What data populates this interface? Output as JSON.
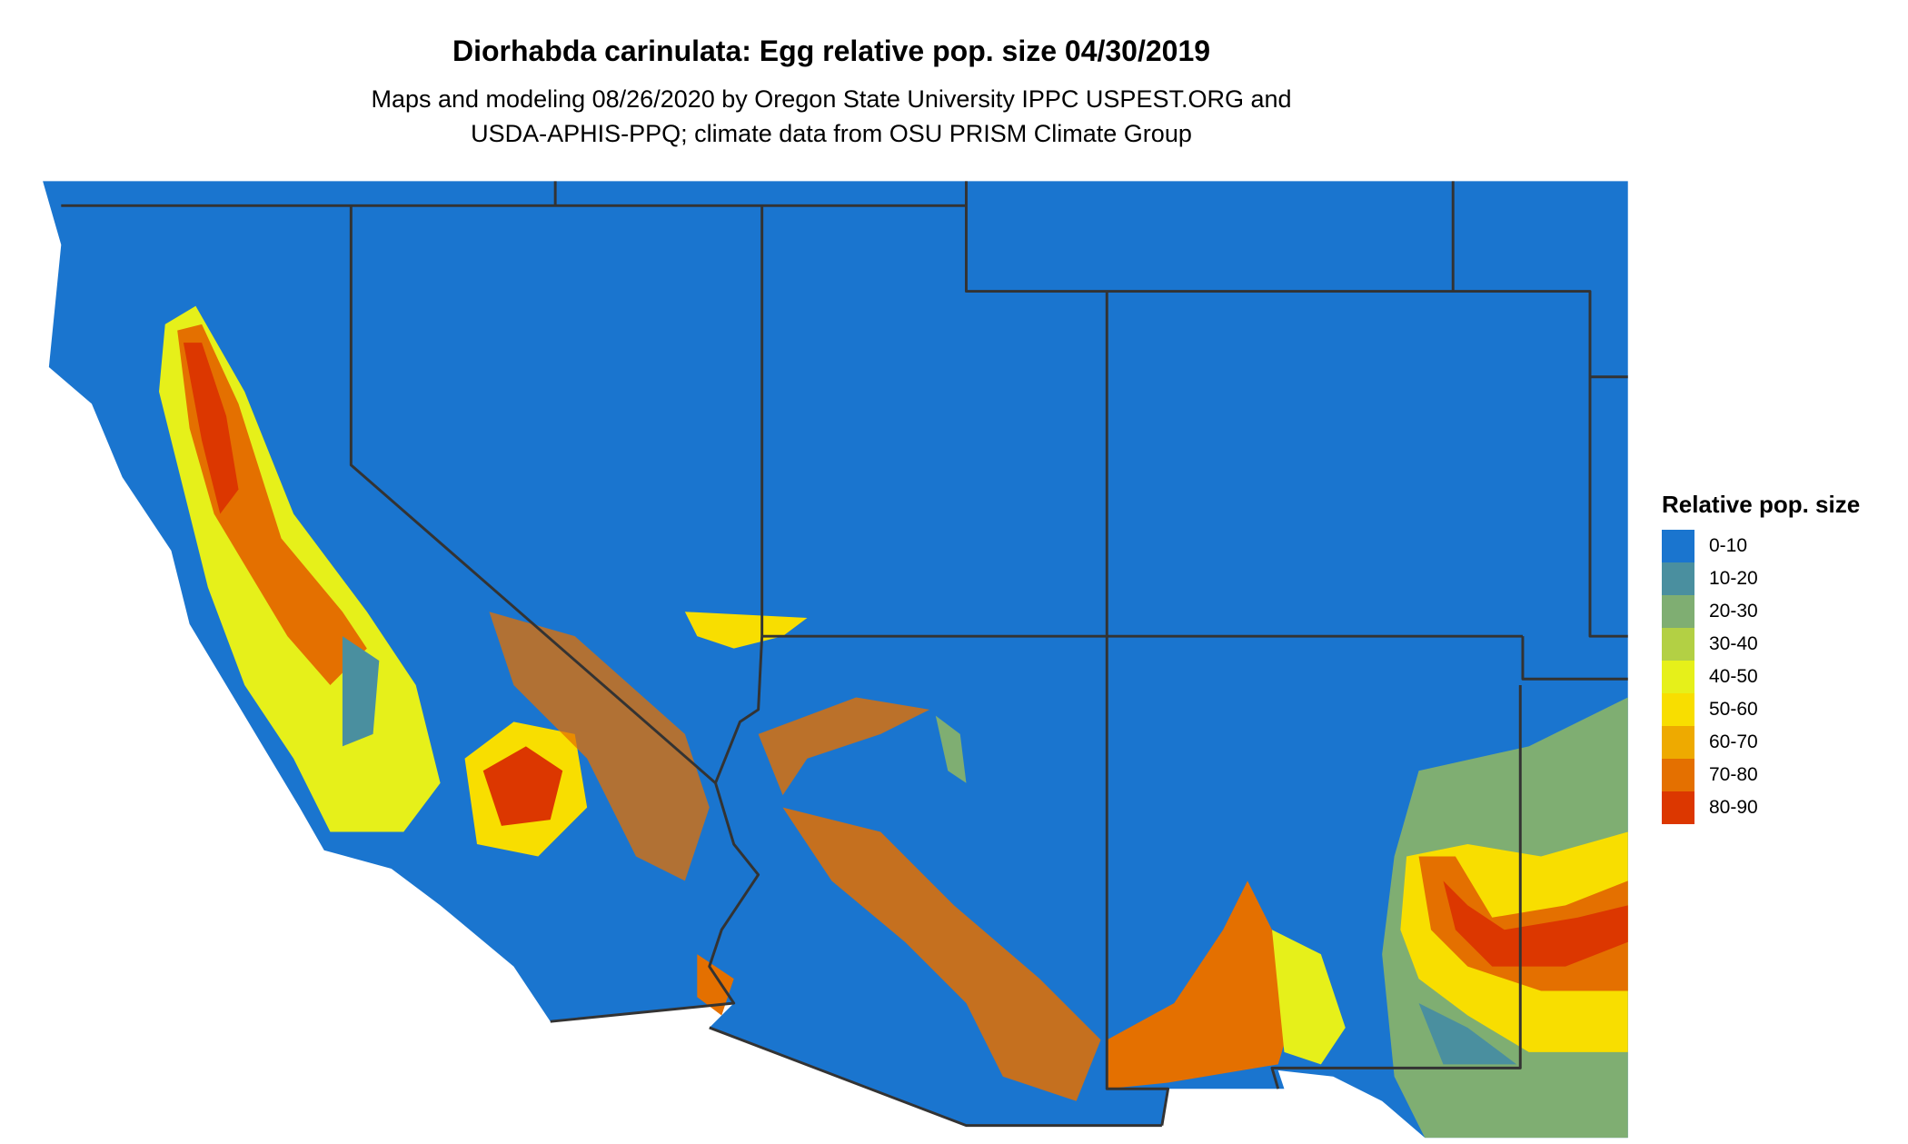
{
  "title": "Diorhabda carinulata: Egg relative pop. size 04/30/2019",
  "subtitle_lines": [
    "Maps and modeling 08/26/2020 by Oregon State University IPPC USPEST.ORG and",
    "USDA-APHIS-PPQ; climate data from OSU PRISM Climate Group"
  ],
  "legend": {
    "title": "Relative pop. size",
    "items": [
      {
        "label": "0-10",
        "color": "#1a75cf"
      },
      {
        "label": "10-20",
        "color": "#4a8f9f"
      },
      {
        "label": "20-30",
        "color": "#7fae72"
      },
      {
        "label": "30-40",
        "color": "#b3d044"
      },
      {
        "label": "40-50",
        "color": "#e6f01a"
      },
      {
        "label": "50-60",
        "color": "#f8de00"
      },
      {
        "label": "60-70",
        "color": "#eeaa00"
      },
      {
        "label": "70-80",
        "color": "#e47000"
      },
      {
        "label": "80-90",
        "color": "#dc3700"
      }
    ]
  },
  "map": {
    "region": "Southwestern United States",
    "background_color": "#1a75cf",
    "border_color": "#333333"
  }
}
